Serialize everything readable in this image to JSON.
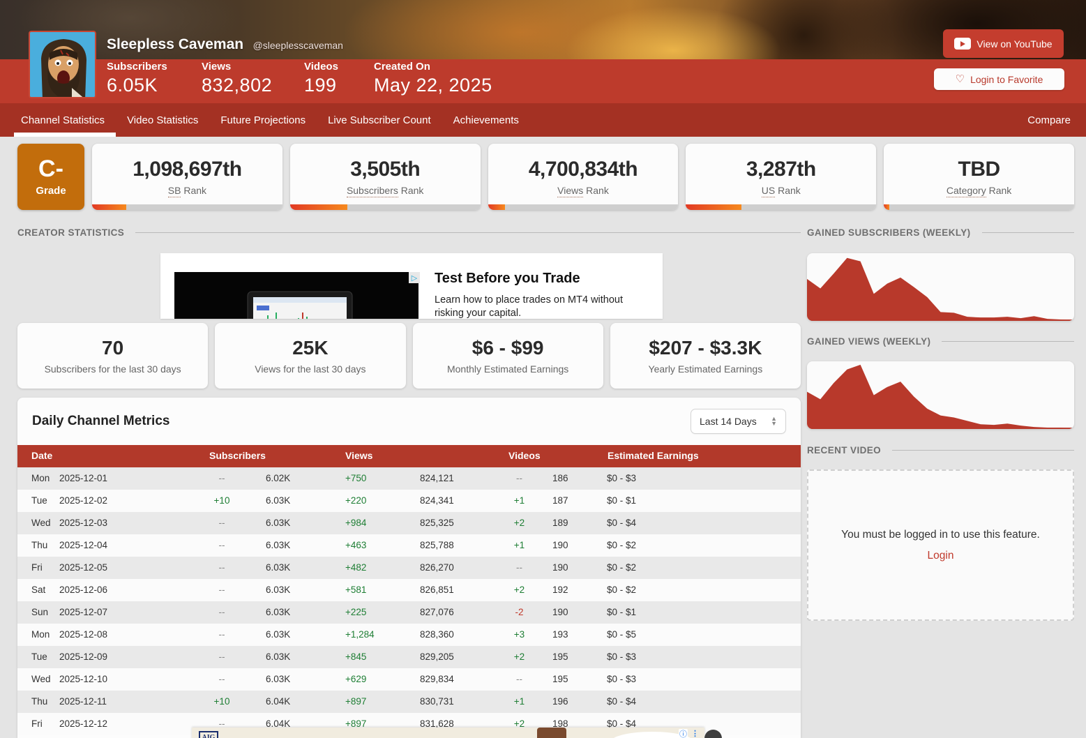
{
  "header": {
    "channel_name": "Sleepless Caveman",
    "handle": "@sleeplesscaveman",
    "stats": [
      {
        "label": "Subscribers",
        "value": "6.05K"
      },
      {
        "label": "Views",
        "value": "832,802"
      },
      {
        "label": "Videos",
        "value": "199"
      },
      {
        "label": "Created On",
        "value": "May 22, 2025"
      }
    ],
    "view_on_youtube_label": "View on YouTube",
    "login_to_favorite_label": "Login to Favorite"
  },
  "nav": {
    "tabs": [
      {
        "label": "Channel Statistics",
        "active": true
      },
      {
        "label": "Video Statistics",
        "active": false
      },
      {
        "label": "Future Projections",
        "active": false
      },
      {
        "label": "Live Subscriber Count",
        "active": false
      },
      {
        "label": "Achievements",
        "active": false
      }
    ],
    "compare_label": "Compare"
  },
  "grade": {
    "value": "C-",
    "label": "Grade"
  },
  "ranks": [
    {
      "value": "1,098,697th",
      "label_underlined": "SB",
      "label_rest": " Rank",
      "progress_pct": 18
    },
    {
      "value": "3,505th",
      "label_underlined": "Subscribers",
      "label_rest": " Rank",
      "progress_pct": 30
    },
    {
      "value": "4,700,834th",
      "label_underlined": "Views",
      "label_rest": " Rank",
      "progress_pct": 9
    },
    {
      "value": "3,287th",
      "label_underlined": "US",
      "label_rest": " Rank",
      "progress_pct": 29
    },
    {
      "value": "TBD",
      "label_underlined": "Category",
      "label_rest": " Rank",
      "progress_pct": 3
    }
  ],
  "sections": {
    "creator_statistics": "CREATOR STATISTICS",
    "gained_subscribers": "GAINED SUBSCRIBERS (WEEKLY)",
    "gained_views": "GAINED VIEWS (WEEKLY)",
    "recent_video": "RECENT VIDEO"
  },
  "ad_top": {
    "title": "Test Before you Trade",
    "body": "Learn how to place trades on MT4 without risking your capital."
  },
  "summary_cards": [
    {
      "value": "70",
      "label": "Subscribers for the last 30 days"
    },
    {
      "value": "25K",
      "label": "Views for the last 30 days"
    },
    {
      "value": "$6 - $99",
      "label": "Monthly Estimated Earnings"
    },
    {
      "value": "$207 - $3.3K",
      "label": "Yearly Estimated Earnings"
    }
  ],
  "metrics": {
    "title": "Daily Channel Metrics",
    "range_selected": "Last 14 Days",
    "columns": [
      "Date",
      "Subscribers",
      "Views",
      "Videos",
      "Estimated Earnings"
    ],
    "rows": [
      {
        "day": "Mon",
        "date": "2025-12-01",
        "sub_change": "--",
        "subs": "6.02K",
        "view_change": "+750",
        "views": "824,121",
        "vid_change": "--",
        "videos": "186",
        "earnings": "$0 - $3"
      },
      {
        "day": "Tue",
        "date": "2025-12-02",
        "sub_change": "+10",
        "subs": "6.03K",
        "view_change": "+220",
        "views": "824,341",
        "vid_change": "+1",
        "videos": "187",
        "earnings": "$0 - $1"
      },
      {
        "day": "Wed",
        "date": "2025-12-03",
        "sub_change": "--",
        "subs": "6.03K",
        "view_change": "+984",
        "views": "825,325",
        "vid_change": "+2",
        "videos": "189",
        "earnings": "$0 - $4"
      },
      {
        "day": "Thu",
        "date": "2025-12-04",
        "sub_change": "--",
        "subs": "6.03K",
        "view_change": "+463",
        "views": "825,788",
        "vid_change": "+1",
        "videos": "190",
        "earnings": "$0 - $2"
      },
      {
        "day": "Fri",
        "date": "2025-12-05",
        "sub_change": "--",
        "subs": "6.03K",
        "view_change": "+482",
        "views": "826,270",
        "vid_change": "--",
        "videos": "190",
        "earnings": "$0 - $2"
      },
      {
        "day": "Sat",
        "date": "2025-12-06",
        "sub_change": "--",
        "subs": "6.03K",
        "view_change": "+581",
        "views": "826,851",
        "vid_change": "+2",
        "videos": "192",
        "earnings": "$0 - $2"
      },
      {
        "day": "Sun",
        "date": "2025-12-07",
        "sub_change": "--",
        "subs": "6.03K",
        "view_change": "+225",
        "views": "827,076",
        "vid_change": "-2",
        "videos": "190",
        "earnings": "$0 - $1"
      },
      {
        "day": "Mon",
        "date": "2025-12-08",
        "sub_change": "--",
        "subs": "6.03K",
        "view_change": "+1,284",
        "views": "828,360",
        "vid_change": "+3",
        "videos": "193",
        "earnings": "$0 - $5"
      },
      {
        "day": "Tue",
        "date": "2025-12-09",
        "sub_change": "--",
        "subs": "6.03K",
        "view_change": "+845",
        "views": "829,205",
        "vid_change": "+2",
        "videos": "195",
        "earnings": "$0 - $3"
      },
      {
        "day": "Wed",
        "date": "2025-12-10",
        "sub_change": "--",
        "subs": "6.03K",
        "view_change": "+629",
        "views": "829,834",
        "vid_change": "--",
        "videos": "195",
        "earnings": "$0 - $3"
      },
      {
        "day": "Thu",
        "date": "2025-12-11",
        "sub_change": "+10",
        "subs": "6.04K",
        "view_change": "+897",
        "views": "830,731",
        "vid_change": "+1",
        "videos": "196",
        "earnings": "$0 - $4"
      },
      {
        "day": "Fri",
        "date": "2025-12-12",
        "sub_change": "--",
        "subs": "6.04K",
        "view_change": "+897",
        "views": "831,628",
        "vid_change": "+2",
        "videos": "198",
        "earnings": "$0 - $4"
      }
    ]
  },
  "recent_video_box": {
    "message": "You must be logged in to use this feature.",
    "login_label": "Login"
  },
  "ad_bottom": {
    "logo": "AIG"
  },
  "colors": {
    "header_red": "#bd3b2c",
    "nav_red": "#a43123",
    "table_header_red": "#b2392a",
    "grade_orange": "#c26d0c",
    "chart_red": "#b8392b",
    "positive_green": "#1e7e34",
    "negative_red": "#c0392b"
  },
  "chart_data": [
    {
      "type": "area",
      "title": "GAINED SUBSCRIBERS (WEEKLY)",
      "xlabel": "",
      "ylabel": "",
      "axis_labels_shown": false,
      "values_relative_pct": [
        62,
        48,
        70,
        93,
        88,
        40,
        55,
        64,
        50,
        35,
        13,
        12,
        6,
        5,
        5,
        6,
        4,
        7,
        3,
        2,
        1
      ]
    },
    {
      "type": "area",
      "title": "GAINED VIEWS (WEEKLY)",
      "xlabel": "",
      "ylabel": "",
      "axis_labels_shown": false,
      "values_relative_pct": [
        55,
        44,
        68,
        88,
        95,
        50,
        62,
        70,
        48,
        30,
        20,
        17,
        12,
        7,
        6,
        8,
        5,
        3,
        2,
        2,
        1
      ]
    }
  ]
}
